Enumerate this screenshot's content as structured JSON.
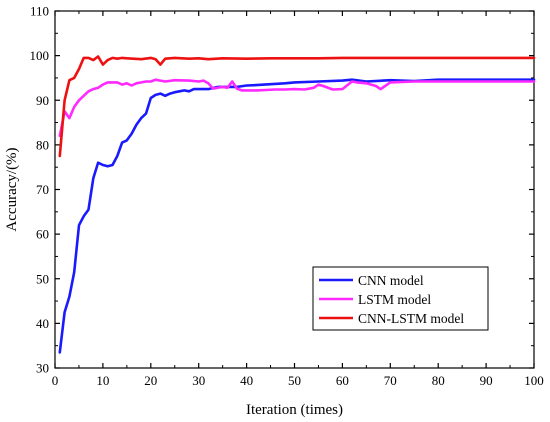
{
  "chart_data": {
    "type": "line",
    "title": "",
    "xlabel": "Iteration (times)",
    "ylabel": "Accuracy/(%)",
    "xlim": [
      0,
      100
    ],
    "ylim": [
      30,
      110
    ],
    "xticks": [
      0,
      10,
      20,
      30,
      40,
      50,
      60,
      70,
      80,
      90,
      100
    ],
    "yticks": [
      30,
      40,
      50,
      60,
      70,
      80,
      90,
      100,
      110
    ],
    "grid": false,
    "legend_position": "bottom-right",
    "series": [
      {
        "name": "CNN model",
        "color": "#1a1aff",
        "x": [
          1,
          2,
          3,
          4,
          5,
          6,
          7,
          8,
          9,
          10,
          11,
          12,
          13,
          14,
          15,
          16,
          17,
          18,
          19,
          20,
          21,
          22,
          23,
          24,
          25,
          26,
          27,
          28,
          29,
          30,
          32,
          34,
          36,
          38,
          40,
          42,
          45,
          48,
          50,
          55,
          60,
          62,
          65,
          70,
          75,
          80,
          90,
          100
        ],
        "values": [
          33.5,
          42.5,
          46,
          51.5,
          62,
          64,
          65.5,
          72.5,
          76,
          75.5,
          75.2,
          75.5,
          77.5,
          80.5,
          81,
          82.5,
          84.5,
          86,
          87,
          90.5,
          91.2,
          91.5,
          91,
          91.5,
          91.8,
          92,
          92.2,
          92,
          92.5,
          92.5,
          92.5,
          93,
          93,
          93,
          93.3,
          93.4,
          93.6,
          93.8,
          94,
          94.2,
          94.4,
          94.6,
          94.2,
          94.5,
          94.3,
          94.6,
          94.6,
          94.6
        ]
      },
      {
        "name": "LSTM model",
        "color": "#ff2aff",
        "x": [
          1,
          2,
          3,
          4,
          5,
          6,
          7,
          8,
          9,
          10,
          11,
          12,
          13,
          14,
          15,
          16,
          17,
          18,
          19,
          20,
          21,
          22,
          23,
          25,
          28,
          30,
          31,
          32,
          33,
          35,
          36,
          37,
          38,
          39,
          40,
          42,
          44,
          46,
          48,
          50,
          52,
          54,
          55,
          56,
          58,
          60,
          62,
          63,
          65,
          67,
          68,
          70,
          75,
          80,
          90,
          100
        ],
        "values": [
          82,
          87.5,
          86,
          88.5,
          90,
          91,
          92,
          92.5,
          92.8,
          93.5,
          94,
          94,
          94,
          93.5,
          93.8,
          93.3,
          93.8,
          94,
          94.2,
          94.2,
          94.6,
          94.4,
          94.2,
          94.5,
          94.4,
          94.2,
          94.4,
          93.8,
          92.6,
          93,
          92.8,
          94.2,
          92.6,
          92.2,
          92.2,
          92.2,
          92.3,
          92.4,
          92.4,
          92.5,
          92.4,
          92.8,
          93.5,
          93.2,
          92.4,
          92.5,
          94.2,
          94,
          93.8,
          93.2,
          92.5,
          94,
          94.2,
          94.2,
          94.2,
          94.2
        ]
      },
      {
        "name": "CNN-LSTM model",
        "color": "#ee1111",
        "x": [
          1,
          2,
          3,
          4,
          5,
          6,
          7,
          8,
          9,
          10,
          11,
          12,
          13,
          14,
          15,
          18,
          20,
          21,
          22,
          23,
          25,
          28,
          30,
          32,
          35,
          40,
          45,
          50,
          55,
          60,
          70,
          80,
          90,
          100
        ],
        "values": [
          77.5,
          90,
          94.5,
          95,
          97,
          99.5,
          99.5,
          99,
          99.8,
          98,
          99,
          99.5,
          99.3,
          99.5,
          99.4,
          99.2,
          99.5,
          99.2,
          98,
          99.3,
          99.5,
          99.3,
          99.4,
          99.2,
          99.4,
          99.3,
          99.4,
          99.4,
          99.4,
          99.5,
          99.5,
          99.5,
          99.5,
          99.5
        ]
      }
    ]
  }
}
